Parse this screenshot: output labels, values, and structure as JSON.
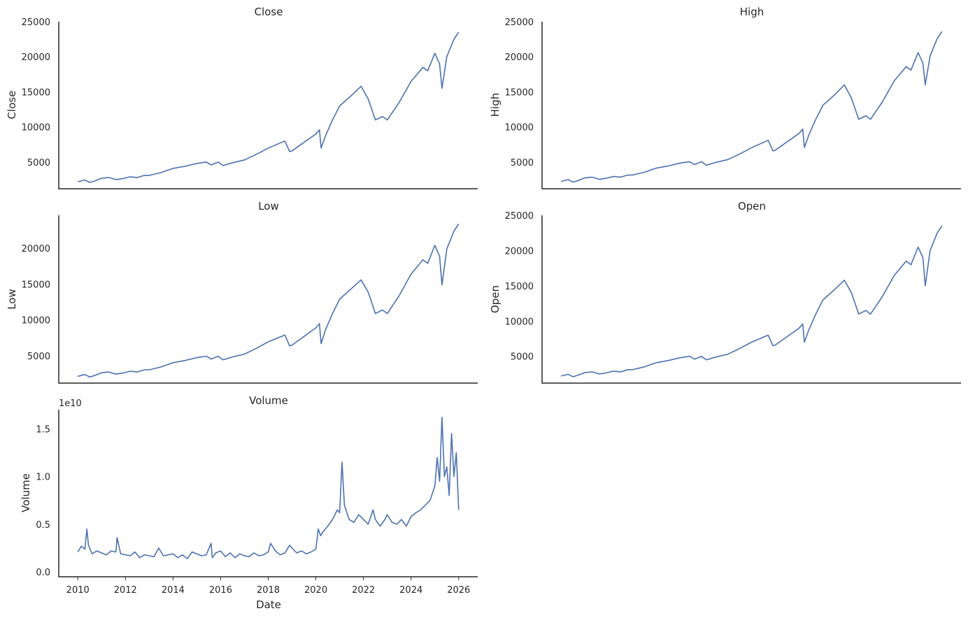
{
  "chart_data": [
    {
      "type": "line",
      "title": "Close",
      "ylabel": "Close",
      "xlabel": "",
      "xlim": [
        2009.2,
        2026.8
      ],
      "ylim": [
        1200,
        25000
      ],
      "yticks": [
        5000,
        10000,
        15000,
        20000,
        25000
      ],
      "ytick_labels": [
        "5000",
        "10000",
        "15000",
        "20000",
        "25000"
      ],
      "show_xticks": false,
      "grid": false,
      "color": "#4c72b0",
      "series": [
        {
          "x": [
            2010.0,
            2010.3,
            2010.5,
            2010.7,
            2011.0,
            2011.3,
            2011.6,
            2011.9,
            2012.2,
            2012.5,
            2012.8,
            2013.0,
            2013.5,
            2014.0,
            2014.5,
            2015.0,
            2015.4,
            2015.6,
            2015.9,
            2016.1,
            2016.5,
            2017.0,
            2017.5,
            2018.0,
            2018.7,
            2018.9,
            2019.0,
            2019.5,
            2020.0,
            2020.15,
            2020.22,
            2020.4,
            2020.7,
            2021.0,
            2021.5,
            2021.9,
            2022.2,
            2022.5,
            2022.8,
            2023.0,
            2023.5,
            2024.0,
            2024.5,
            2024.7,
            2025.0,
            2025.2,
            2025.3,
            2025.5,
            2025.8,
            2026.0
          ],
          "y": [
            2200,
            2450,
            2100,
            2300,
            2700,
            2800,
            2500,
            2650,
            2900,
            2800,
            3100,
            3100,
            3500,
            4100,
            4400,
            4800,
            5000,
            4600,
            5000,
            4500,
            4900,
            5300,
            6100,
            7000,
            8000,
            6500,
            6600,
            7800,
            9000,
            9600,
            7000,
            8700,
            11000,
            13000,
            14500,
            15800,
            14000,
            11000,
            11500,
            11000,
            13500,
            16500,
            18500,
            18000,
            20500,
            19000,
            15500,
            20000,
            22500,
            23500
          ]
        }
      ]
    },
    {
      "type": "line",
      "title": "High",
      "ylabel": "High",
      "xlabel": "",
      "xlim": [
        2009.2,
        2026.8
      ],
      "ylim": [
        1200,
        25000
      ],
      "yticks": [
        5000,
        10000,
        15000,
        20000,
        25000
      ],
      "ytick_labels": [
        "5000",
        "10000",
        "15000",
        "20000",
        "25000"
      ],
      "show_xticks": false,
      "grid": false,
      "color": "#4c72b0",
      "series": [
        {
          "x": [
            2010.0,
            2010.3,
            2010.5,
            2010.7,
            2011.0,
            2011.3,
            2011.6,
            2011.9,
            2012.2,
            2012.5,
            2012.8,
            2013.0,
            2013.5,
            2014.0,
            2014.5,
            2015.0,
            2015.4,
            2015.6,
            2015.9,
            2016.1,
            2016.5,
            2017.0,
            2017.5,
            2018.0,
            2018.7,
            2018.9,
            2019.0,
            2019.5,
            2020.0,
            2020.15,
            2020.22,
            2020.4,
            2020.7,
            2021.0,
            2021.5,
            2021.9,
            2022.2,
            2022.5,
            2022.8,
            2023.0,
            2023.5,
            2024.0,
            2024.5,
            2024.7,
            2025.0,
            2025.2,
            2025.3,
            2025.5,
            2025.8,
            2026.0
          ],
          "y": [
            2250,
            2500,
            2150,
            2350,
            2750,
            2850,
            2550,
            2700,
            2950,
            2850,
            3150,
            3150,
            3550,
            4150,
            4450,
            4850,
            5050,
            4650,
            5050,
            4550,
            4950,
            5350,
            6150,
            7050,
            8100,
            6600,
            6700,
            7900,
            9100,
            9700,
            7100,
            8800,
            11100,
            13100,
            14600,
            16000,
            14100,
            11100,
            11600,
            11100,
            13600,
            16600,
            18600,
            18100,
            20600,
            19100,
            16000,
            20100,
            22600,
            23600
          ]
        }
      ]
    },
    {
      "type": "line",
      "title": "Low",
      "ylabel": "Low",
      "xlabel": "",
      "xlim": [
        2009.2,
        2026.8
      ],
      "ylim": [
        1200,
        24600
      ],
      "yticks": [
        5000,
        10000,
        15000,
        20000
      ],
      "ytick_labels": [
        "5000",
        "10000",
        "15000",
        "20000"
      ],
      "show_xticks": false,
      "grid": false,
      "color": "#4c72b0",
      "series": [
        {
          "x": [
            2010.0,
            2010.3,
            2010.5,
            2010.7,
            2011.0,
            2011.3,
            2011.6,
            2011.9,
            2012.2,
            2012.5,
            2012.8,
            2013.0,
            2013.5,
            2014.0,
            2014.5,
            2015.0,
            2015.4,
            2015.6,
            2015.9,
            2016.1,
            2016.5,
            2017.0,
            2017.5,
            2018.0,
            2018.7,
            2018.9,
            2019.0,
            2019.5,
            2020.0,
            2020.15,
            2020.22,
            2020.4,
            2020.7,
            2021.0,
            2021.5,
            2021.9,
            2022.2,
            2022.5,
            2022.8,
            2023.0,
            2023.5,
            2024.0,
            2024.5,
            2024.7,
            2025.0,
            2025.2,
            2025.3,
            2025.5,
            2025.8,
            2026.0
          ],
          "y": [
            2150,
            2400,
            2050,
            2250,
            2650,
            2750,
            2450,
            2600,
            2850,
            2750,
            3050,
            3050,
            3450,
            4050,
            4350,
            4750,
            4950,
            4550,
            4950,
            4450,
            4850,
            5250,
            6050,
            6950,
            7900,
            6400,
            6500,
            7700,
            8900,
            9500,
            6700,
            8600,
            10900,
            12900,
            14400,
            15600,
            13900,
            10900,
            11400,
            10900,
            13400,
            16400,
            18400,
            17900,
            20400,
            18900,
            14900,
            19900,
            22400,
            23400
          ]
        }
      ]
    },
    {
      "type": "line",
      "title": "Open",
      "ylabel": "Open",
      "xlabel": "",
      "xlim": [
        2009.2,
        2026.8
      ],
      "ylim": [
        1200,
        25000
      ],
      "yticks": [
        5000,
        10000,
        15000,
        20000,
        25000
      ],
      "ytick_labels": [
        "5000",
        "10000",
        "15000",
        "20000",
        "25000"
      ],
      "show_xticks": false,
      "grid": false,
      "color": "#4c72b0",
      "series": [
        {
          "x": [
            2010.0,
            2010.3,
            2010.5,
            2010.7,
            2011.0,
            2011.3,
            2011.6,
            2011.9,
            2012.2,
            2012.5,
            2012.8,
            2013.0,
            2013.5,
            2014.0,
            2014.5,
            2015.0,
            2015.4,
            2015.6,
            2015.9,
            2016.1,
            2016.5,
            2017.0,
            2017.5,
            2018.0,
            2018.7,
            2018.9,
            2019.0,
            2019.5,
            2020.0,
            2020.15,
            2020.22,
            2020.4,
            2020.7,
            2021.0,
            2021.5,
            2021.9,
            2022.2,
            2022.5,
            2022.8,
            2023.0,
            2023.5,
            2024.0,
            2024.5,
            2024.7,
            2025.0,
            2025.2,
            2025.3,
            2025.5,
            2025.8,
            2026.0
          ],
          "y": [
            2200,
            2450,
            2100,
            2300,
            2700,
            2800,
            2500,
            2650,
            2900,
            2800,
            3100,
            3100,
            3500,
            4100,
            4400,
            4800,
            5000,
            4600,
            5000,
            4500,
            4900,
            5300,
            6100,
            7000,
            8000,
            6500,
            6600,
            7800,
            9000,
            9600,
            7000,
            8700,
            11000,
            13000,
            14500,
            15800,
            14000,
            11000,
            11500,
            11000,
            13500,
            16500,
            18500,
            18000,
            20500,
            19000,
            15000,
            20000,
            22500,
            23500
          ]
        }
      ]
    },
    {
      "type": "line",
      "title": "Volume",
      "ylabel": "Volume",
      "xlabel": "Date",
      "offset_label": "1e10",
      "xlim": [
        2009.2,
        2026.8
      ],
      "ylim": [
        -0.05,
        1.7
      ],
      "yticks": [
        0.0,
        0.5,
        1.0,
        1.5
      ],
      "ytick_labels": [
        "0.0",
        "0.5",
        "1.0",
        "1.5"
      ],
      "show_xticks": true,
      "xticks": [
        2010,
        2012,
        2014,
        2016,
        2018,
        2020,
        2022,
        2024,
        2026
      ],
      "xtick_labels": [
        "2010",
        "2012",
        "2014",
        "2016",
        "2018",
        "2020",
        "2022",
        "2024",
        "2026"
      ],
      "grid": false,
      "color": "#4c72b0",
      "series": [
        {
          "x": [
            2010.0,
            2010.15,
            2010.3,
            2010.38,
            2010.45,
            2010.6,
            2010.8,
            2011.0,
            2011.2,
            2011.4,
            2011.6,
            2011.65,
            2011.8,
            2012.0,
            2012.2,
            2012.4,
            2012.6,
            2012.8,
            2013.0,
            2013.2,
            2013.4,
            2013.6,
            2013.8,
            2014.0,
            2014.2,
            2014.4,
            2014.6,
            2014.8,
            2015.0,
            2015.2,
            2015.4,
            2015.6,
            2015.65,
            2015.8,
            2016.0,
            2016.2,
            2016.4,
            2016.6,
            2016.8,
            2017.0,
            2017.2,
            2017.4,
            2017.6,
            2017.8,
            2018.0,
            2018.1,
            2018.3,
            2018.5,
            2018.7,
            2018.9,
            2019.0,
            2019.2,
            2019.4,
            2019.6,
            2019.8,
            2020.0,
            2020.1,
            2020.2,
            2020.3,
            2020.5,
            2020.7,
            2020.9,
            2021.0,
            2021.1,
            2021.2,
            2021.4,
            2021.6,
            2021.8,
            2022.0,
            2022.2,
            2022.4,
            2022.5,
            2022.7,
            2022.9,
            2023.0,
            2023.2,
            2023.4,
            2023.6,
            2023.8,
            2024.0,
            2024.2,
            2024.4,
            2024.6,
            2024.8,
            2025.0,
            2025.1,
            2025.2,
            2025.3,
            2025.4,
            2025.5,
            2025.6,
            2025.7,
            2025.8,
            2025.9,
            2026.0
          ],
          "y": [
            0.21,
            0.27,
            0.24,
            0.45,
            0.28,
            0.19,
            0.22,
            0.2,
            0.18,
            0.22,
            0.21,
            0.36,
            0.19,
            0.18,
            0.17,
            0.21,
            0.15,
            0.18,
            0.17,
            0.16,
            0.25,
            0.17,
            0.18,
            0.19,
            0.15,
            0.18,
            0.14,
            0.21,
            0.19,
            0.17,
            0.18,
            0.3,
            0.15,
            0.2,
            0.22,
            0.16,
            0.2,
            0.15,
            0.19,
            0.17,
            0.16,
            0.2,
            0.17,
            0.18,
            0.21,
            0.3,
            0.22,
            0.18,
            0.2,
            0.28,
            0.25,
            0.2,
            0.22,
            0.19,
            0.21,
            0.24,
            0.45,
            0.38,
            0.42,
            0.48,
            0.55,
            0.65,
            0.62,
            1.15,
            0.7,
            0.55,
            0.52,
            0.6,
            0.55,
            0.5,
            0.65,
            0.55,
            0.48,
            0.55,
            0.6,
            0.52,
            0.5,
            0.55,
            0.48,
            0.58,
            0.62,
            0.65,
            0.7,
            0.75,
            0.9,
            1.2,
            0.95,
            1.62,
            1.0,
            1.1,
            0.8,
            1.45,
            1.0,
            1.25,
            0.65
          ]
        }
      ]
    }
  ]
}
